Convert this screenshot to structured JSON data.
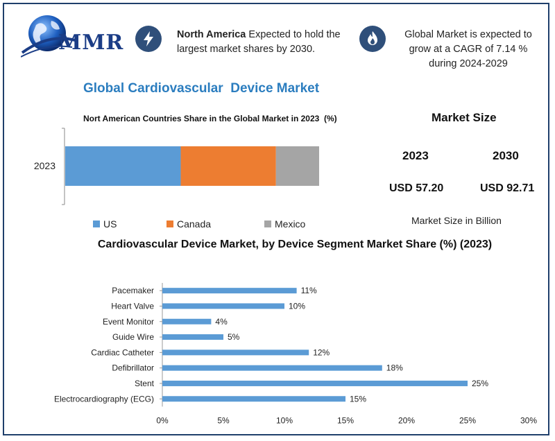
{
  "logo": {
    "text": "MMR"
  },
  "info": {
    "left": {
      "bold": "North America",
      "rest": " Expected to hold the largest market shares by 2030."
    },
    "right": {
      "text": "Global Market is expected to grow at a CAGR of 7.14 % during 2024-2029"
    }
  },
  "main_title": "Global Cardiovascular  Device Market",
  "market_size": {
    "title": "Market Size",
    "years": [
      "2023",
      "2030"
    ],
    "values": [
      "USD 57.20",
      "USD 92.71"
    ],
    "note": "Market Size in Billion"
  },
  "colors": {
    "us": "#5b9bd5",
    "canada": "#ed7d31",
    "mexico": "#a5a5a5",
    "bar": "#5b9bd5",
    "title_blue": "#2b7dbf",
    "icon_bg": "#2f4f7a"
  },
  "chart_data": [
    {
      "type": "bar",
      "orientation": "horizontal-stacked",
      "title": "Nort American Countries Share in the Global Market in 2023  (%)",
      "categories": [
        "2023"
      ],
      "series": [
        {
          "name": "US",
          "values": [
            45.5
          ]
        },
        {
          "name": "Canada",
          "values": [
            37.5
          ]
        },
        {
          "name": "Mexico",
          "values": [
            17
          ]
        }
      ],
      "legend_position": "bottom"
    },
    {
      "type": "bar",
      "orientation": "horizontal",
      "title": "Cardiovascular Device Market, by Device Segment Market Share (%) (2023)",
      "categories": [
        "Pacemaker",
        "Heart Valve",
        "Event Monitor",
        "Guide Wire",
        "Cardiac Catheter",
        "Defibrillator",
        "Stent",
        "Electrocardiography (ECG)"
      ],
      "values": [
        11,
        10,
        4,
        5,
        12,
        18,
        25,
        15
      ],
      "data_labels": [
        "11%",
        "10%",
        "4%",
        "5%",
        "12%",
        "18%",
        "25%",
        "15%"
      ],
      "x_ticks": [
        "0%",
        "5%",
        "10%",
        "15%",
        "20%",
        "25%",
        "30%"
      ],
      "xlim": [
        0,
        30
      ]
    }
  ]
}
